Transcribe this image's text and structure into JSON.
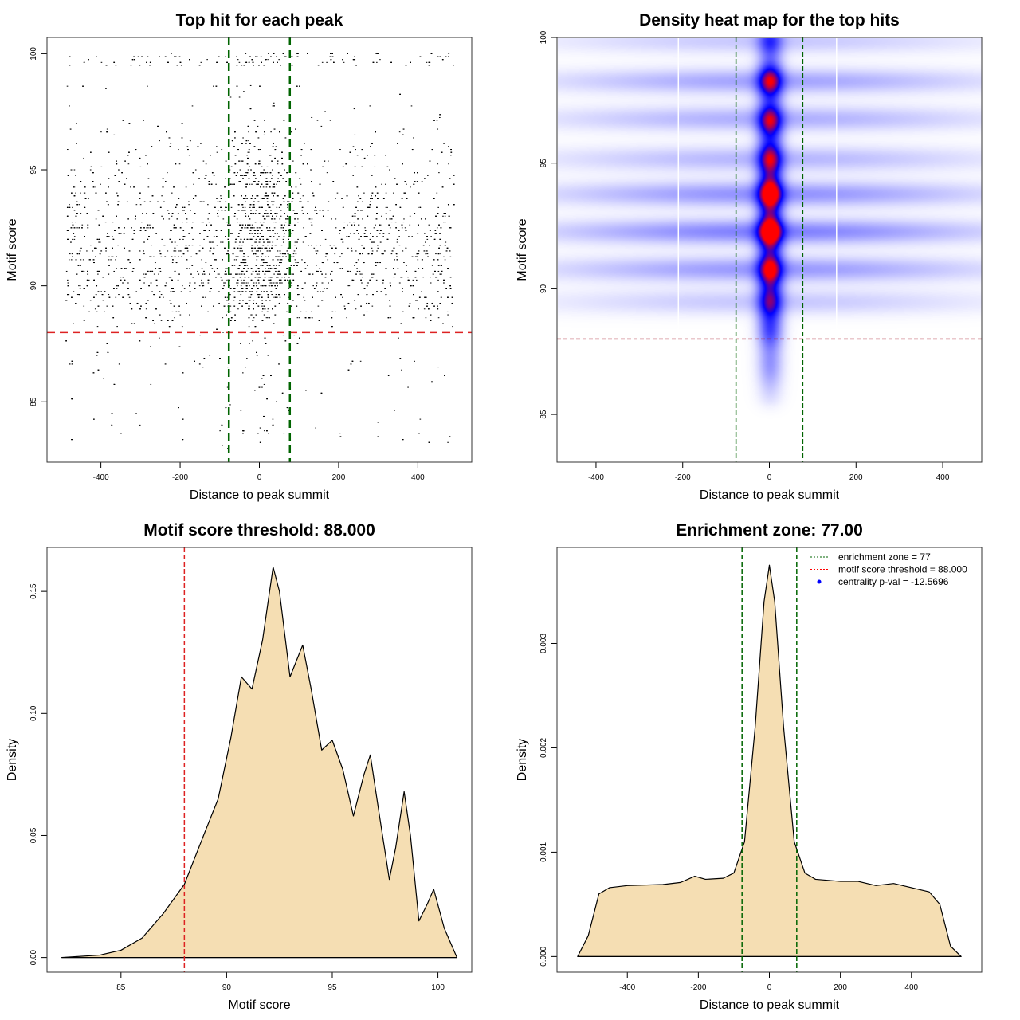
{
  "chart_data": [
    {
      "type": "scatter",
      "title": "Top hit for each peak",
      "xlabel": "Distance to peak summit",
      "ylabel": "Motif score",
      "xlim": [
        -536,
        536
      ],
      "ylim": [
        82.4,
        100.7
      ],
      "xticks": [
        -400,
        -200,
        0,
        200,
        400
      ],
      "yticks": [
        85,
        90,
        95,
        100
      ],
      "point_color": "#000000",
      "note_points": "dense points spanning x -490..490, scores 83..100, densest near 0 and scores 89-98",
      "hlines": [
        {
          "y": 88,
          "color": "#dd2222",
          "style": "dashed"
        }
      ],
      "vlines": [
        {
          "x": -77,
          "color": "#006400",
          "style": "dashed"
        },
        {
          "x": 77,
          "color": "#006400",
          "style": "dashed"
        }
      ]
    },
    {
      "type": "heatmap",
      "title": "Density heat map for the top hits",
      "xlabel": "Distance to peak summit",
      "ylabel": "Motif score",
      "xlim": [
        -490,
        490
      ],
      "ylim": [
        83.1,
        100
      ],
      "xticks": [
        -400,
        -200,
        0,
        200,
        400
      ],
      "yticks": [
        85,
        90,
        95,
        100
      ],
      "colors": [
        "#ffffff",
        "#0000ff",
        "#ff0000"
      ],
      "hot_spots": [
        {
          "x": 0,
          "y": 92.3
        },
        {
          "x": 0,
          "y": 93.8
        }
      ],
      "hlines": [
        {
          "y": 88,
          "color": "#aa2233",
          "style": "dashed"
        }
      ],
      "vlines": [
        {
          "x": -77,
          "color": "#006400",
          "style": "dashed"
        },
        {
          "x": 77,
          "color": "#006400",
          "style": "dashed"
        }
      ]
    },
    {
      "type": "area",
      "title": "Motif score threshold: 88.000",
      "xlabel": "Motif score",
      "ylabel": "Density",
      "xlim": [
        81.5,
        101.6
      ],
      "ylim": [
        -0.006,
        0.168
      ],
      "xticks": [
        85,
        90,
        95,
        100
      ],
      "yticks": [
        0.0,
        0.05,
        0.1,
        0.15
      ],
      "ytick_labels": [
        "0.00",
        "0.05",
        "0.10",
        "0.15"
      ],
      "fill": "#f5deb3",
      "x": [
        82.2,
        84,
        85,
        86,
        87,
        88,
        89,
        89.6,
        90.2,
        90.7,
        91.2,
        91.7,
        92.2,
        92.5,
        93,
        93.6,
        94,
        94.5,
        95,
        95.5,
        96,
        96.5,
        96.8,
        97.2,
        97.7,
        98,
        98.4,
        98.7,
        99.1,
        99.5,
        99.8,
        100.3,
        100.9
      ],
      "y": [
        0,
        0.001,
        0.003,
        0.008,
        0.018,
        0.03,
        0.052,
        0.065,
        0.09,
        0.115,
        0.11,
        0.13,
        0.16,
        0.15,
        0.115,
        0.128,
        0.11,
        0.085,
        0.089,
        0.077,
        0.058,
        0.075,
        0.083,
        0.06,
        0.032,
        0.045,
        0.068,
        0.05,
        0.015,
        0.022,
        0.028,
        0.012,
        0
      ],
      "vlines": [
        {
          "x": 88,
          "color": "#dd2222",
          "style": "dashed"
        }
      ]
    },
    {
      "type": "area",
      "title": "Enrichment zone: 77.00",
      "xlabel": "Distance to peak summit",
      "ylabel": "Density",
      "xlim": [
        -598,
        598
      ],
      "ylim": [
        -0.00015,
        0.00392
      ],
      "xticks": [
        -400,
        -200,
        0,
        200,
        400
      ],
      "yticks": [
        0,
        0.001,
        0.002,
        0.003
      ],
      "ytick_labels": [
        "0.000",
        "0.001",
        "0.002",
        "0.003"
      ],
      "fill": "#f5deb3",
      "x": [
        -540,
        -510,
        -480,
        -450,
        -400,
        -300,
        -250,
        -210,
        -180,
        -130,
        -100,
        -70,
        -40,
        -15,
        0,
        15,
        40,
        70,
        100,
        130,
        200,
        250,
        300,
        350,
        400,
        450,
        480,
        510,
        540
      ],
      "y": [
        0,
        0.0002,
        0.0006,
        0.00066,
        0.00068,
        0.00069,
        0.00071,
        0.00077,
        0.00074,
        0.00075,
        0.0008,
        0.0011,
        0.0022,
        0.0034,
        0.00375,
        0.0034,
        0.0022,
        0.0011,
        0.0008,
        0.00074,
        0.00072,
        0.00072,
        0.00068,
        0.0007,
        0.00066,
        0.00062,
        0.0005,
        0.0001,
        0
      ],
      "vlines": [
        {
          "x": -77,
          "color": "#006400",
          "style": "dashed"
        },
        {
          "x": 77,
          "color": "#006400",
          "style": "dashed"
        }
      ],
      "legend": {
        "position": "top-right",
        "entries": [
          {
            "label": "enrichment zone = 77",
            "color": "#006400",
            "marker": "dotted-line"
          },
          {
            "label": "motif score threshold = 88.000",
            "color": "#ff0000",
            "marker": "dotted-line"
          },
          {
            "label": "centrality p-val = -12.5696",
            "color": "#0000ff",
            "marker": "dot"
          }
        ]
      }
    }
  ]
}
